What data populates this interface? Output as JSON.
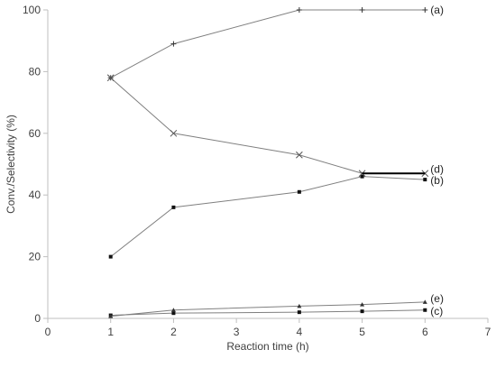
{
  "chart_data": {
    "type": "line",
    "title": "",
    "xlabel": "Reaction time (h)",
    "ylabel": "Conv./Selectivity (%)",
    "xlim": [
      0,
      7
    ],
    "ylim": [
      0,
      100
    ],
    "x_ticks": [
      "0",
      "1",
      "2",
      "3",
      "4",
      "5",
      "6",
      "7"
    ],
    "y_ticks": [
      "0",
      "20",
      "40",
      "60",
      "80",
      "100"
    ],
    "grid": false,
    "legend": "none (series labelled at right end of each line)",
    "series": [
      {
        "name": "(a)",
        "marker": "plus",
        "color": "#808080",
        "x": [
          1,
          2,
          4,
          5,
          6
        ],
        "y": [
          78,
          89,
          100,
          100,
          100
        ]
      },
      {
        "name": "(b)",
        "marker": "square",
        "color": "#808080",
        "x": [
          1,
          2,
          4,
          5,
          6
        ],
        "y": [
          20,
          36,
          41,
          46,
          45
        ]
      },
      {
        "name": "(c)",
        "marker": "square",
        "color": "#808080",
        "x": [
          1,
          2,
          4,
          5,
          6
        ],
        "y": [
          1,
          1.7,
          2,
          2.3,
          2.7
        ]
      },
      {
        "name": "(d)",
        "marker": "x",
        "color": "#808080",
        "x": [
          1,
          2,
          4,
          5,
          6
        ],
        "y": [
          78,
          60,
          53,
          47,
          47
        ]
      },
      {
        "name": "(e)",
        "marker": "triangle",
        "color": "#808080",
        "x": [
          1,
          2,
          4,
          5,
          6
        ],
        "y": [
          0.7,
          2.7,
          4,
          4.5,
          5.3
        ]
      }
    ]
  }
}
